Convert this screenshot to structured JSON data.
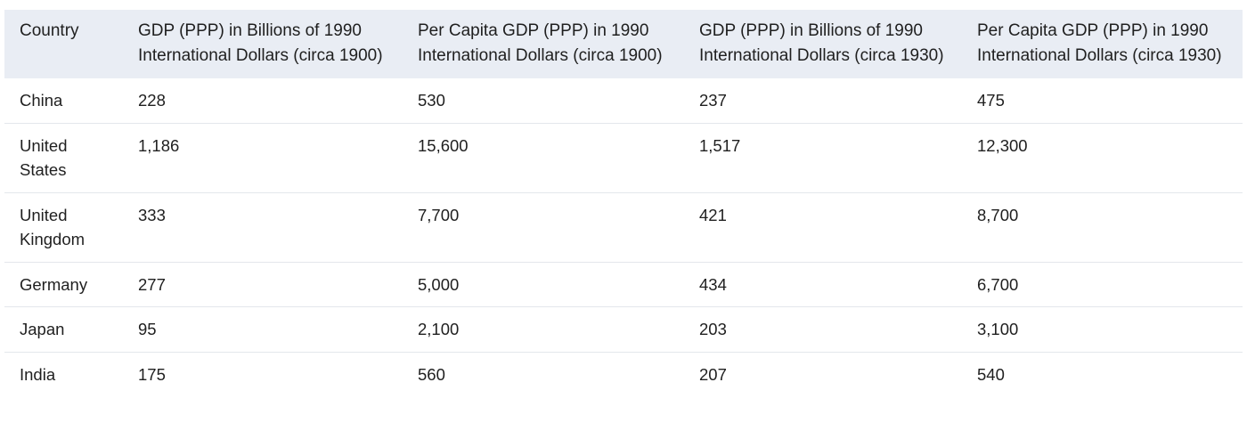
{
  "table": {
    "headers": [
      "Country",
      "GDP (PPP) in Billions of 1990 International Dollars (circa 1900)",
      "Per Capita GDP (PPP) in 1990 International Dollars (circa 1900)",
      "GDP (PPP) in Billions of 1990 International Dollars (circa 1930)",
      "Per Capita GDP (PPP) in 1990 International Dollars (circa 1930)"
    ],
    "rows": [
      [
        "China",
        "228",
        "530",
        "237",
        "475"
      ],
      [
        "United States",
        "1,186",
        "15,600",
        "1,517",
        "12,300"
      ],
      [
        "United Kingdom",
        "333",
        "7,700",
        "421",
        "8,700"
      ],
      [
        "Germany",
        "277",
        "5,000",
        "434",
        "6,700"
      ],
      [
        "Japan",
        "95",
        "2,100",
        "203",
        "3,100"
      ],
      [
        "India",
        "175",
        "560",
        "207",
        "540"
      ]
    ]
  }
}
